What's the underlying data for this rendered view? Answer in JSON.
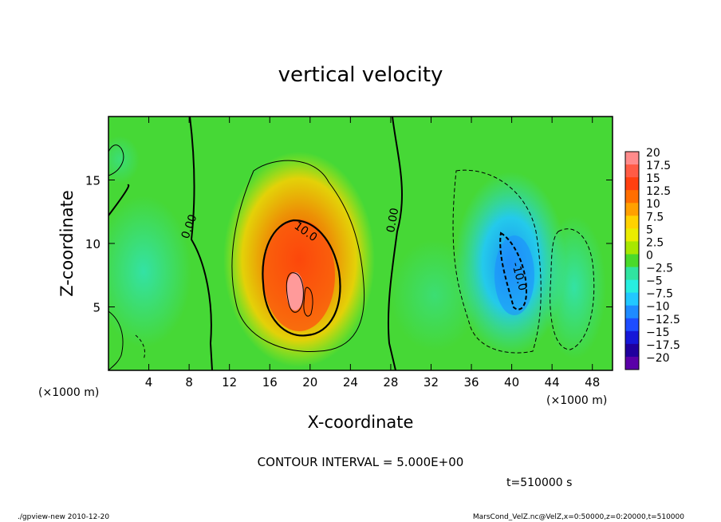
{
  "chart_data": {
    "type": "heatmap",
    "title": "vertical velocity",
    "xlabel": "X-coordinate",
    "ylabel": "Z-coordinate",
    "x_unit_left": "(×1000 m)",
    "x_unit_right": "(×1000 m)",
    "xlim": [
      0,
      50
    ],
    "ylim": [
      0,
      20
    ],
    "xticks": [
      4,
      8,
      12,
      16,
      20,
      24,
      28,
      32,
      36,
      40,
      44,
      48
    ],
    "yticks": [
      5,
      10,
      15
    ],
    "colorbar": {
      "levels": [
        20,
        17.5,
        15,
        12.5,
        10,
        7.5,
        5,
        2.5,
        0,
        -2.5,
        -5,
        -7.5,
        -10,
        -12.5,
        -15,
        -17.5,
        -20
      ],
      "labels": [
        "20",
        "17.5",
        "15",
        "12.5",
        "10",
        "7.5",
        "5",
        "2.5",
        "0",
        "−2.5",
        "−5",
        "−7.5",
        "−10",
        "−12.5",
        "−15",
        "−17.5",
        "−20"
      ],
      "colors": [
        "#ff8b8b",
        "#ff5b45",
        "#ff4010",
        "#ff6e00",
        "#ffa000",
        "#ffd200",
        "#eaec00",
        "#a8e800",
        "#4ada2b",
        "#30e4a0",
        "#27eee0",
        "#21c8ff",
        "#1e8bff",
        "#1d4dff",
        "#1617d8",
        "#20009e",
        "#5a00a8"
      ]
    },
    "contour_labels": [
      "0.00",
      "10.0",
      "0.00",
      "-10.0"
    ],
    "features": [
      {
        "kind": "updraft",
        "x": 19,
        "z": 7.5,
        "peak": 20
      },
      {
        "kind": "downdraft",
        "x": 40.5,
        "z": 7.5,
        "peak": -10
      }
    ],
    "contour_interval_text": "CONTOUR INTERVAL = 5.000E+00",
    "time_text": "t=510000 s"
  },
  "footer": {
    "left": "./gpview-new  2010-12-20",
    "right": "MarsCond_VelZ.nc@VelZ,x=0:50000,z=0:20000,t=510000"
  }
}
